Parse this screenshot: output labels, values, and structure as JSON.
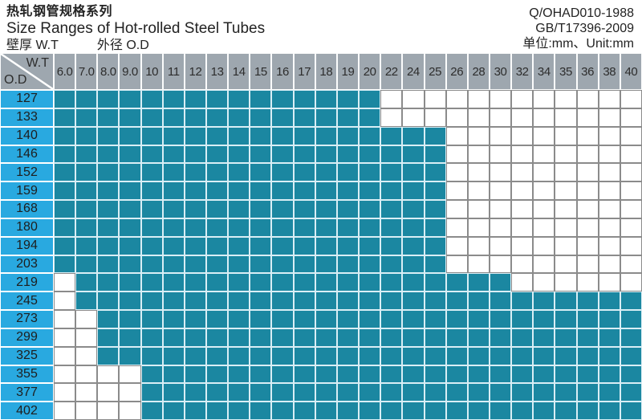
{
  "title": {
    "zh": "热轧钢管规格系列",
    "en": "Size Ranges of Hot-rolled Steel Tubes",
    "wt_label": "壁厚  W.T",
    "od_label": "外径 O.D"
  },
  "standards": {
    "line1": "Q/OHAD010-1988",
    "line2": "GB/T17396-2009",
    "line3": "单位:mm、Unit:mm"
  },
  "table": {
    "corner": {
      "top": "W.T",
      "bottom": "O.D"
    },
    "wt_columns": [
      "6.0",
      "7.0",
      "8.0",
      "9.0",
      "10",
      "11",
      "12",
      "13",
      "14",
      "15",
      "16",
      "17",
      "18",
      "19",
      "20",
      "22",
      "24",
      "25",
      "26",
      "28",
      "30",
      "32",
      "34",
      "35",
      "36",
      "38",
      "40"
    ],
    "od_rows": [
      "127",
      "133",
      "140",
      "146",
      "152",
      "159",
      "168",
      "180",
      "194",
      "203",
      "219",
      "245",
      "273",
      "299",
      "325",
      "355",
      "377",
      "402"
    ]
  },
  "colors": {
    "filled_cell": "#1B87A1",
    "od_column": "#29A9E0",
    "header_grey": "#9EA7AF",
    "empty_cell_border": "#8B8B8B",
    "filled_cell_border": "#D9EEF5"
  },
  "chart_data": {
    "type": "heatmap",
    "title": "热轧钢管规格系列 / Size Ranges of Hot-rolled Steel Tubes",
    "xlabel": "W.T 壁厚 (mm)",
    "ylabel": "O.D 外径 (mm)",
    "x": [
      6.0,
      7.0,
      8.0,
      9.0,
      10,
      11,
      12,
      13,
      14,
      15,
      16,
      17,
      18,
      19,
      20,
      22,
      24,
      25,
      26,
      28,
      30,
      32,
      34,
      35,
      36,
      38,
      40
    ],
    "y": [
      127,
      133,
      140,
      146,
      152,
      159,
      168,
      180,
      194,
      203,
      219,
      245,
      273,
      299,
      325,
      355,
      377,
      402
    ],
    "legend": "1 = size produced (teal cell), 0 = not produced (white cell)",
    "row_wt_ranges": [
      {
        "od": 127,
        "wt_min": 6.0,
        "wt_max": 20
      },
      {
        "od": 133,
        "wt_min": 6.0,
        "wt_max": 20
      },
      {
        "od": 140,
        "wt_min": 6.0,
        "wt_max": 25
      },
      {
        "od": 146,
        "wt_min": 6.0,
        "wt_max": 25
      },
      {
        "od": 152,
        "wt_min": 6.0,
        "wt_max": 25
      },
      {
        "od": 159,
        "wt_min": 6.0,
        "wt_max": 25
      },
      {
        "od": 168,
        "wt_min": 6.0,
        "wt_max": 25
      },
      {
        "od": 180,
        "wt_min": 6.0,
        "wt_max": 25
      },
      {
        "od": 194,
        "wt_min": 6.0,
        "wt_max": 25
      },
      {
        "od": 203,
        "wt_min": 6.0,
        "wt_max": 25
      },
      {
        "od": 219,
        "wt_min": 7.0,
        "wt_max": 30
      },
      {
        "od": 245,
        "wt_min": 7.0,
        "wt_max": 40
      },
      {
        "od": 273,
        "wt_min": 8.0,
        "wt_max": 40
      },
      {
        "od": 299,
        "wt_min": 8.0,
        "wt_max": 40
      },
      {
        "od": 325,
        "wt_min": 8.0,
        "wt_max": 40
      },
      {
        "od": 355,
        "wt_min": 10,
        "wt_max": 40
      },
      {
        "od": 377,
        "wt_min": 10,
        "wt_max": 40
      },
      {
        "od": 402,
        "wt_min": 10,
        "wt_max": 40
      }
    ],
    "matrix": [
      [
        1,
        1,
        1,
        1,
        1,
        1,
        1,
        1,
        1,
        1,
        1,
        1,
        1,
        1,
        1,
        0,
        0,
        0,
        0,
        0,
        0,
        0,
        0,
        0,
        0,
        0,
        0
      ],
      [
        1,
        1,
        1,
        1,
        1,
        1,
        1,
        1,
        1,
        1,
        1,
        1,
        1,
        1,
        1,
        0,
        0,
        0,
        0,
        0,
        0,
        0,
        0,
        0,
        0,
        0,
        0
      ],
      [
        1,
        1,
        1,
        1,
        1,
        1,
        1,
        1,
        1,
        1,
        1,
        1,
        1,
        1,
        1,
        1,
        1,
        1,
        0,
        0,
        0,
        0,
        0,
        0,
        0,
        0,
        0
      ],
      [
        1,
        1,
        1,
        1,
        1,
        1,
        1,
        1,
        1,
        1,
        1,
        1,
        1,
        1,
        1,
        1,
        1,
        1,
        0,
        0,
        0,
        0,
        0,
        0,
        0,
        0,
        0
      ],
      [
        1,
        1,
        1,
        1,
        1,
        1,
        1,
        1,
        1,
        1,
        1,
        1,
        1,
        1,
        1,
        1,
        1,
        1,
        0,
        0,
        0,
        0,
        0,
        0,
        0,
        0,
        0
      ],
      [
        1,
        1,
        1,
        1,
        1,
        1,
        1,
        1,
        1,
        1,
        1,
        1,
        1,
        1,
        1,
        1,
        1,
        1,
        0,
        0,
        0,
        0,
        0,
        0,
        0,
        0,
        0
      ],
      [
        1,
        1,
        1,
        1,
        1,
        1,
        1,
        1,
        1,
        1,
        1,
        1,
        1,
        1,
        1,
        1,
        1,
        1,
        0,
        0,
        0,
        0,
        0,
        0,
        0,
        0,
        0
      ],
      [
        1,
        1,
        1,
        1,
        1,
        1,
        1,
        1,
        1,
        1,
        1,
        1,
        1,
        1,
        1,
        1,
        1,
        1,
        0,
        0,
        0,
        0,
        0,
        0,
        0,
        0,
        0
      ],
      [
        1,
        1,
        1,
        1,
        1,
        1,
        1,
        1,
        1,
        1,
        1,
        1,
        1,
        1,
        1,
        1,
        1,
        1,
        0,
        0,
        0,
        0,
        0,
        0,
        0,
        0,
        0
      ],
      [
        1,
        1,
        1,
        1,
        1,
        1,
        1,
        1,
        1,
        1,
        1,
        1,
        1,
        1,
        1,
        1,
        1,
        1,
        0,
        0,
        0,
        0,
        0,
        0,
        0,
        0,
        0
      ],
      [
        0,
        1,
        1,
        1,
        1,
        1,
        1,
        1,
        1,
        1,
        1,
        1,
        1,
        1,
        1,
        1,
        1,
        1,
        1,
        1,
        1,
        0,
        0,
        0,
        0,
        0,
        0
      ],
      [
        0,
        1,
        1,
        1,
        1,
        1,
        1,
        1,
        1,
        1,
        1,
        1,
        1,
        1,
        1,
        1,
        1,
        1,
        1,
        1,
        1,
        1,
        1,
        1,
        1,
        1,
        1
      ],
      [
        0,
        0,
        1,
        1,
        1,
        1,
        1,
        1,
        1,
        1,
        1,
        1,
        1,
        1,
        1,
        1,
        1,
        1,
        1,
        1,
        1,
        1,
        1,
        1,
        1,
        1,
        1
      ],
      [
        0,
        0,
        1,
        1,
        1,
        1,
        1,
        1,
        1,
        1,
        1,
        1,
        1,
        1,
        1,
        1,
        1,
        1,
        1,
        1,
        1,
        1,
        1,
        1,
        1,
        1,
        1
      ],
      [
        0,
        0,
        1,
        1,
        1,
        1,
        1,
        1,
        1,
        1,
        1,
        1,
        1,
        1,
        1,
        1,
        1,
        1,
        1,
        1,
        1,
        1,
        1,
        1,
        1,
        1,
        1
      ],
      [
        0,
        0,
        0,
        0,
        1,
        1,
        1,
        1,
        1,
        1,
        1,
        1,
        1,
        1,
        1,
        1,
        1,
        1,
        1,
        1,
        1,
        1,
        1,
        1,
        1,
        1,
        1
      ],
      [
        0,
        0,
        0,
        0,
        1,
        1,
        1,
        1,
        1,
        1,
        1,
        1,
        1,
        1,
        1,
        1,
        1,
        1,
        1,
        1,
        1,
        1,
        1,
        1,
        1,
        1,
        1
      ],
      [
        0,
        0,
        0,
        0,
        1,
        1,
        1,
        1,
        1,
        1,
        1,
        1,
        1,
        1,
        1,
        1,
        1,
        1,
        1,
        1,
        1,
        1,
        1,
        1,
        1,
        1,
        1
      ]
    ]
  }
}
